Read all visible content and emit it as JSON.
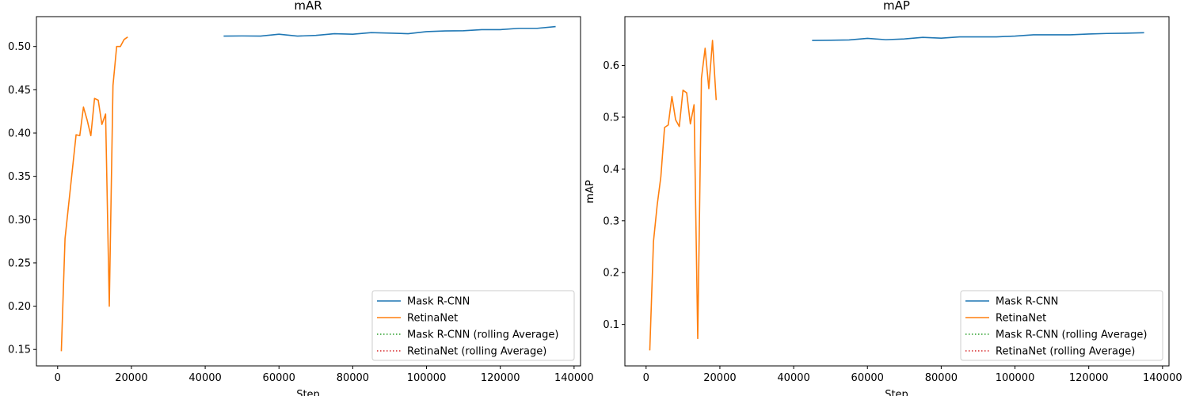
{
  "chart_data": [
    {
      "type": "line",
      "title": "mAR",
      "xlabel": "Step",
      "ylabel": "",
      "xlim": [
        -5750,
        141750
      ],
      "ylim": [
        0.131,
        0.5345
      ],
      "xticks": [
        0,
        20000,
        40000,
        60000,
        80000,
        100000,
        120000,
        140000
      ],
      "xtick_labels": [
        "0",
        "20000",
        "40000",
        "60000",
        "80000",
        "100000",
        "120000",
        "140000"
      ],
      "yticks": [
        0.15,
        0.2,
        0.25,
        0.3,
        0.35,
        0.4,
        0.45,
        0.5
      ],
      "ytick_labels": [
        "0.15",
        "0.20",
        "0.25",
        "0.30",
        "0.35",
        "0.40",
        "0.45",
        "0.50"
      ],
      "grid": false,
      "legend_position": "lower-right",
      "legend": [
        "Mask R-CNN",
        "RetinaNet",
        "Mask R-CNN (rolling Average)",
        "RetinaNet (rolling Average)"
      ],
      "series": [
        {
          "name": "Mask R-CNN",
          "color": "#1f77b4",
          "style": "solid",
          "x": [
            45000,
            50000,
            55000,
            60000,
            65000,
            70000,
            75000,
            80000,
            85000,
            90000,
            95000,
            100000,
            105000,
            110000,
            115000,
            120000,
            125000,
            130000,
            135000
          ],
          "y": [
            0.512,
            0.5122,
            0.512,
            0.5142,
            0.512,
            0.5128,
            0.5148,
            0.5142,
            0.516,
            0.5155,
            0.5148,
            0.5172,
            0.518,
            0.5182,
            0.5195,
            0.5195,
            0.521,
            0.521,
            0.523
          ]
        },
        {
          "name": "RetinaNet",
          "color": "#ff7f0e",
          "style": "solid",
          "x": [
            1000,
            2000,
            3000,
            4000,
            5000,
            6000,
            7000,
            8000,
            9000,
            10000,
            11000,
            12000,
            13000,
            14000,
            15000,
            16000,
            17000,
            18000,
            19000
          ],
          "y": [
            0.148,
            0.278,
            0.318,
            0.358,
            0.398,
            0.397,
            0.43,
            0.415,
            0.397,
            0.44,
            0.438,
            0.41,
            0.422,
            0.2,
            0.455,
            0.5,
            0.5,
            0.508,
            0.511
          ]
        },
        {
          "name": "Mask R-CNN (rolling Average)",
          "color": "#2ca02c",
          "style": "dotted",
          "x": [],
          "y": []
        },
        {
          "name": "RetinaNet (rolling Average)",
          "color": "#d62728",
          "style": "dotted",
          "x": [],
          "y": []
        }
      ]
    },
    {
      "type": "line",
      "title": "mAP",
      "xlabel": "Step",
      "ylabel": "mAP",
      "xlim": [
        -5750,
        141750
      ],
      "ylim": [
        0.02,
        0.694
      ],
      "xticks": [
        0,
        20000,
        40000,
        60000,
        80000,
        100000,
        120000,
        140000
      ],
      "xtick_labels": [
        "0",
        "20000",
        "40000",
        "60000",
        "80000",
        "100000",
        "120000",
        "140000"
      ],
      "yticks": [
        0.1,
        0.2,
        0.3,
        0.4,
        0.5,
        0.6
      ],
      "ytick_labels": [
        "0.1",
        "0.2",
        "0.3",
        "0.4",
        "0.5",
        "0.6"
      ],
      "grid": false,
      "legend_position": "lower-right",
      "legend": [
        "Mask R-CNN",
        "RetinaNet",
        "Mask R-CNN (rolling Average)",
        "RetinaNet (rolling Average)"
      ],
      "series": [
        {
          "name": "Mask R-CNN",
          "color": "#1f77b4",
          "style": "solid",
          "x": [
            45000,
            50000,
            55000,
            60000,
            65000,
            70000,
            75000,
            80000,
            85000,
            90000,
            95000,
            100000,
            105000,
            110000,
            115000,
            120000,
            125000,
            130000,
            135000
          ],
          "y": [
            0.648,
            0.6485,
            0.649,
            0.652,
            0.6495,
            0.651,
            0.654,
            0.6525,
            0.655,
            0.655,
            0.655,
            0.6565,
            0.659,
            0.659,
            0.659,
            0.6605,
            0.6615,
            0.662,
            0.663
          ]
        },
        {
          "name": "RetinaNet",
          "color": "#ff7f0e",
          "style": "solid",
          "x": [
            1000,
            2000,
            3000,
            4000,
            5000,
            6000,
            7000,
            8000,
            9000,
            10000,
            11000,
            12000,
            13000,
            14000,
            15000,
            16000,
            17000,
            18000,
            19000
          ],
          "y": [
            0.05,
            0.26,
            0.33,
            0.385,
            0.48,
            0.485,
            0.54,
            0.495,
            0.482,
            0.552,
            0.547,
            0.487,
            0.524,
            0.073,
            0.575,
            0.633,
            0.555,
            0.648,
            0.533
          ]
        },
        {
          "name": "Mask R-CNN (rolling Average)",
          "color": "#2ca02c",
          "style": "dotted",
          "x": [],
          "y": []
        },
        {
          "name": "RetinaNet (rolling Average)",
          "color": "#d62728",
          "style": "dotted",
          "x": [],
          "y": []
        }
      ]
    }
  ]
}
